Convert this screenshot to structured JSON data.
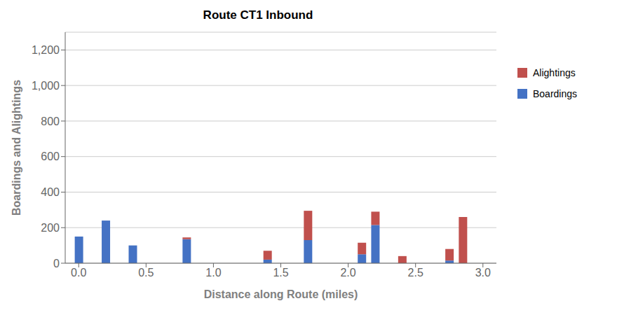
{
  "chart_data": {
    "type": "bar",
    "title": "Route CT1 Inbound",
    "x_label": "Distance along Route (miles)",
    "y_label": "Boardings and Alightings",
    "x": [
      0.0,
      0.2,
      0.4,
      0.8,
      1.4,
      1.7,
      2.1,
      2.2,
      2.4,
      2.75,
      2.85
    ],
    "series": [
      {
        "name": "Boardings",
        "color": "#4472C4",
        "values": [
          150,
          240,
          100,
          135,
          20,
          130,
          50,
          215,
          0,
          15,
          0
        ]
      },
      {
        "name": "Alightings",
        "color": "#C0504D",
        "values": [
          0,
          0,
          0,
          10,
          50,
          165,
          65,
          75,
          40,
          65,
          260
        ]
      }
    ],
    "stacked": true,
    "xlim": [
      -0.1,
      3.1
    ],
    "xticks": [
      {
        "value": 0.0,
        "label": "0.0"
      },
      {
        "value": 0.5,
        "label": "0.5"
      },
      {
        "value": 1.0,
        "label": "1.0"
      },
      {
        "value": 1.5,
        "label": "1.5"
      },
      {
        "value": 2.0,
        "label": "2.0"
      },
      {
        "value": 2.5,
        "label": "2.5"
      },
      {
        "value": 3.0,
        "label": "3.0"
      }
    ],
    "ylim": [
      0,
      1300
    ],
    "yticks": [
      0,
      200,
      400,
      600,
      800,
      {
        "value": 1000,
        "label": "1,000"
      },
      {
        "value": 1200,
        "label": "1,200"
      }
    ],
    "grid": true,
    "legend": "right"
  }
}
